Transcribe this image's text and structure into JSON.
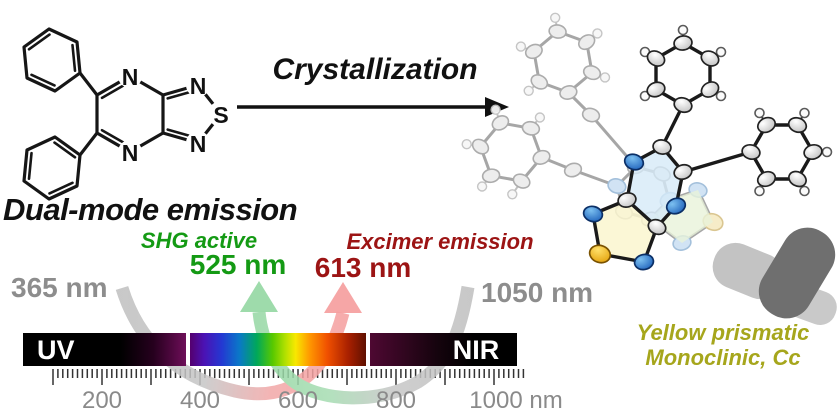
{
  "colors": {
    "green": "#149a14",
    "darkred": "#9c1414",
    "graylabel": "#8d8d8d",
    "olive": "#a6a61c",
    "ruler": "#8a8a8a",
    "arrowgray": "#c2c2c2",
    "arrowgreen": "#96d8a4",
    "arrowred": "#f59e9e"
  },
  "reactant": {
    "atoms": {
      "pyrazine_n_top": "N",
      "pyrazine_n_bottom": "N",
      "thiadiazole_n_top": "N",
      "thiadiazole_s": "S",
      "thiadiazole_n_bottom": "N"
    }
  },
  "reaction": {
    "label": "Crystallization"
  },
  "emission": {
    "title": "Dual-mode emission",
    "shg_label": "SHG active",
    "shg_wavelength": "525 nm",
    "excimer_label": "Excimer emission",
    "excimer_wavelength": "613 nm",
    "uv_excitation": "365 nm",
    "nir_excitation": "1050 nm"
  },
  "spectrum": {
    "uv_band_label": "UV",
    "nir_band_label": "NIR",
    "ruler_labels": [
      "200",
      "400",
      "600",
      "800",
      "1000 nm"
    ],
    "scale_nm_start": 100,
    "scale_nm_end": 1050
  },
  "product": {
    "caption_line1": "Yellow prismatic",
    "caption_line2": "Monoclinic, Cc"
  }
}
